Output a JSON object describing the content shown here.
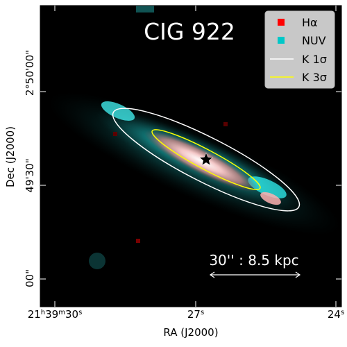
{
  "image": {
    "title": "CIG 922",
    "x_axis_label": "RA (J2000)",
    "y_axis_label": "Dec (J2000)",
    "x_ticks": [
      {
        "label_main": "21",
        "sup_h": "h",
        "label_m": "39",
        "sup_m": "m",
        "label_s": "30",
        "sup_s": "s"
      },
      {
        "label_main": "27",
        "sup_s": "s"
      },
      {
        "label_main": "24",
        "sup_s": "s"
      }
    ],
    "y_ticks": [
      "2°50'00\"",
      "2°50\"",
      "49'30\"",
      "00\""
    ],
    "legend": [
      {
        "label": "Hα",
        "color": "#ff0000"
      },
      {
        "label": "NUV",
        "color": "#00c8c8"
      },
      {
        "label": "K 1σ",
        "color": "#ffffff"
      },
      {
        "label": "K 3σ",
        "color": "#ffff00"
      }
    ],
    "scale_bar": "30'' : 8.5 kpc",
    "marker": "star"
  }
}
